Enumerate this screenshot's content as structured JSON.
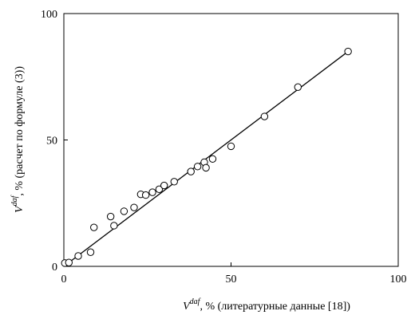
{
  "chart_data": {
    "type": "scatter",
    "title": "",
    "xlabel_symbol": "V",
    "xlabel_superscript": "daf",
    "xlabel_rest": ", % (литературные данные [18])",
    "ylabel_symbol": "V",
    "ylabel_superscript": "daf",
    "ylabel_rest": ", % (расчет по формуле (3))",
    "xlim": [
      0,
      100
    ],
    "ylim": [
      0,
      100
    ],
    "x_ticks": [
      0,
      50,
      100
    ],
    "y_ticks": [
      0,
      50,
      100
    ],
    "x_tick_labels": [
      "0",
      "50",
      "100"
    ],
    "y_tick_labels": [
      "0",
      "50",
      "100"
    ],
    "grid": false,
    "fit_line": {
      "x": [
        0,
        85
      ],
      "y": [
        0,
        85
      ]
    },
    "series": [
      {
        "marker": "open-circle",
        "points": [
          [
            0.3,
            1.3
          ],
          [
            1.5,
            1.5
          ],
          [
            4.3,
            4.1
          ],
          [
            8.0,
            5.6
          ],
          [
            9.0,
            15.4
          ],
          [
            14.0,
            19.7
          ],
          [
            15.0,
            16.1
          ],
          [
            18.0,
            21.8
          ],
          [
            21.0,
            23.3
          ],
          [
            23.0,
            28.5
          ],
          [
            24.5,
            28.2
          ],
          [
            26.5,
            29.3
          ],
          [
            28.5,
            30.5
          ],
          [
            30.0,
            32.0
          ],
          [
            33.0,
            33.5
          ],
          [
            38.0,
            37.5
          ],
          [
            40.0,
            39.5
          ],
          [
            42.0,
            41.2
          ],
          [
            42.5,
            39.0
          ],
          [
            44.5,
            42.5
          ],
          [
            50.0,
            47.5
          ],
          [
            60.0,
            59.3
          ],
          [
            70.0,
            70.9
          ],
          [
            85.0,
            85.0
          ]
        ]
      }
    ]
  }
}
